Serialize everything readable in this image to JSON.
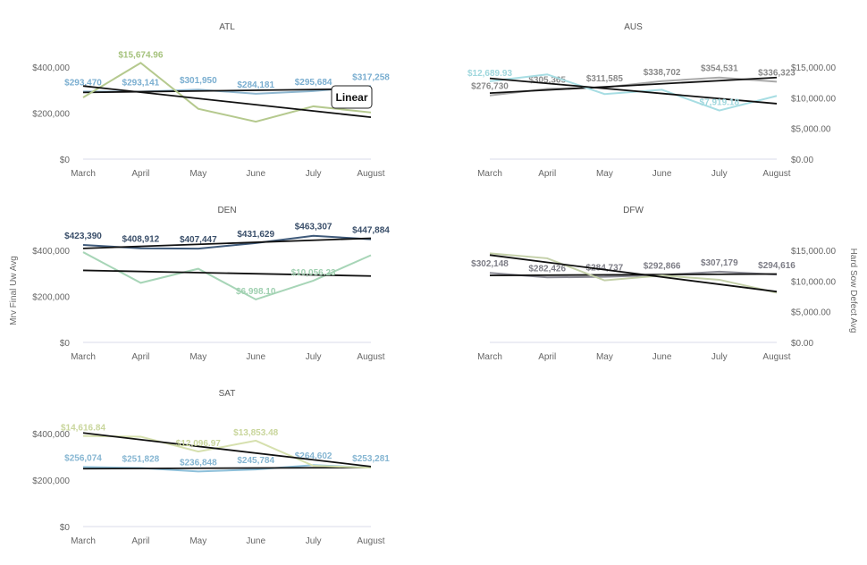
{
  "y_axis_left_label": "Mrv Final Uw Avg",
  "y_axis_right_label": "Hard Sow Defect Avg",
  "tooltip_label": "Linear",
  "colors": {
    "uw": "#8fb7d0",
    "uw_label": "#7aaed0",
    "defect": "#b5c98e",
    "defect_label": "#a5c27c",
    "trend": "#111111",
    "axis": "#d8dbe8",
    "aus_uw": "#a9a9a9",
    "aus_defect": "#a7dde3",
    "den_uw": "#3f5a7a",
    "den_defect": "#a7d5b7",
    "dfw_uw": "#8b8b95",
    "dfw_defect": "#c4d0a9",
    "sat_uw": "#8ec0da",
    "sat_defect": "#d6e0ae"
  },
  "chart_data": [
    {
      "type": "line",
      "title": "ATL",
      "categories": [
        "March",
        "April",
        "May",
        "June",
        "July",
        "August"
      ],
      "left_axis": {
        "ylim": [
          0,
          400000
        ],
        "ticks": [
          "$0",
          "$200,000",
          "$400,000"
        ]
      },
      "right_axis": null,
      "series": [
        {
          "axis": "left",
          "role": "uw",
          "values": [
            293470,
            293141,
            301950,
            284181,
            295684,
            317258
          ],
          "labels": [
            "$293,470",
            "$293,141",
            "$301,950",
            "$284,181",
            "$295,684",
            "$317,258"
          ]
        },
        {
          "axis": "right",
          "role": "defect",
          "values": [
            10050,
            15674.96,
            8200,
            6100,
            8600,
            7600
          ],
          "labels": [
            "",
            "$15,674.96",
            "",
            "",
            "",
            ""
          ]
        }
      ],
      "right_range": [
        0,
        15000
      ]
    },
    {
      "type": "line",
      "title": "AUS",
      "categories": [
        "March",
        "April",
        "May",
        "June",
        "July",
        "August"
      ],
      "left_axis": null,
      "right_axis": {
        "ylim": [
          0,
          15000
        ],
        "ticks": [
          "$0.00",
          "$5,000.00",
          "$10,000.00",
          "$15,000.00"
        ]
      },
      "series": [
        {
          "axis": "left",
          "role": "uw",
          "values": [
            276730,
            305365,
            311585,
            338702,
            354531,
            336323
          ],
          "labels": [
            "$276,730",
            "$305,365",
            "$311,585",
            "$338,702",
            "$354,531",
            "$336,323"
          ]
        },
        {
          "axis": "right",
          "role": "defect",
          "values": [
            12689.93,
            13800,
            10600,
            11300,
            7919.18,
            10300
          ],
          "labels": [
            "$12,689.93",
            "",
            "",
            "",
            "$7,919.18",
            ""
          ]
        }
      ],
      "left_range": [
        0,
        400000
      ]
    },
    {
      "type": "line",
      "title": "DEN",
      "categories": [
        "March",
        "April",
        "May",
        "June",
        "July",
        "August"
      ],
      "left_axis": {
        "ylim": [
          0,
          400000
        ],
        "ticks": [
          "$0",
          "$200,000",
          "$400,000"
        ]
      },
      "right_axis": null,
      "series": [
        {
          "axis": "left",
          "role": "uw",
          "values": [
            423390,
            408912,
            407447,
            431629,
            463307,
            447884
          ],
          "labels": [
            "$423,390",
            "$408,912",
            "$407,447",
            "$431,629",
            "$463,307",
            "$447,884"
          ]
        },
        {
          "axis": "right",
          "role": "defect",
          "values": [
            14700,
            9700,
            12000,
            6998.1,
            10056.23,
            14200
          ],
          "labels": [
            "",
            "",
            "",
            "$6,998.10",
            "$10,056.23",
            ""
          ]
        }
      ],
      "right_range": [
        0,
        15000
      ]
    },
    {
      "type": "line",
      "title": "DFW",
      "categories": [
        "March",
        "April",
        "May",
        "June",
        "July",
        "August"
      ],
      "left_axis": null,
      "right_axis": {
        "ylim": [
          0,
          15000
        ],
        "ticks": [
          "$0.00",
          "$5,000.00",
          "$10,000.00",
          "$15,000.00"
        ]
      },
      "series": [
        {
          "axis": "left",
          "role": "uw",
          "values": [
            302148,
            282426,
            284737,
            292866,
            307179,
            294616
          ],
          "labels": [
            "$302,148",
            "$282,426",
            "$284,737",
            "$292,866",
            "$307,179",
            "$294,616"
          ]
        },
        {
          "axis": "right",
          "role": "defect",
          "values": [
            14500,
            13700,
            10100,
            10900,
            10200,
            8100
          ],
          "labels": [
            "",
            "",
            "",
            "",
            "",
            ""
          ]
        }
      ],
      "left_range": [
        0,
        400000
      ]
    },
    {
      "type": "line",
      "title": "SAT",
      "categories": [
        "March",
        "April",
        "May",
        "June",
        "July",
        "August"
      ],
      "left_axis": {
        "ylim": [
          0,
          400000
        ],
        "ticks": [
          "$0",
          "$200,000",
          "$400,000"
        ]
      },
      "right_axis": null,
      "series": [
        {
          "axis": "left",
          "role": "uw",
          "values": [
            256074,
            251828,
            236848,
            245784,
            264602,
            253281
          ],
          "labels": [
            "$256,074",
            "$251,828",
            "$236,848",
            "$245,784",
            "$264,602",
            "$253,281"
          ]
        },
        {
          "axis": "right",
          "role": "defect",
          "values": [
            14616.84,
            14500,
            12096.97,
            13853.48,
            9800,
            9500
          ],
          "labels": [
            "$14,616.84",
            "",
            "$12,096.97",
            "$13,853.48",
            "",
            ""
          ]
        }
      ],
      "right_range": [
        0,
        15000
      ]
    }
  ]
}
